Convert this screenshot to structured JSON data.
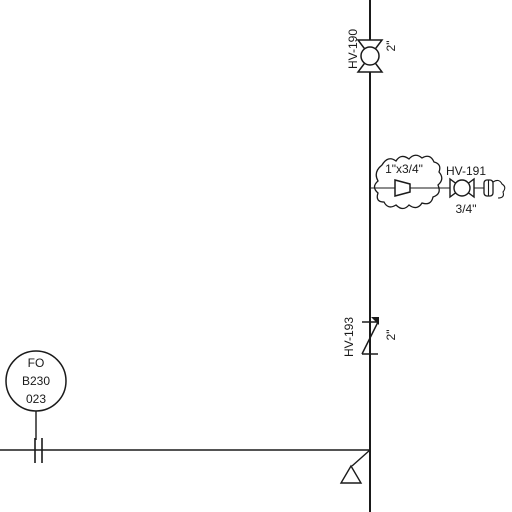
{
  "valves": {
    "hv190": {
      "tag": "HV-190",
      "size": "2\""
    },
    "hv191": {
      "tag": "HV-191",
      "size": "3/4\""
    },
    "hv193": {
      "tag": "HV-193",
      "size": "2\""
    }
  },
  "reducer": {
    "label": "1\"x3/4\""
  },
  "instrument": {
    "line1": "FO",
    "line2": "B230",
    "line3": "023"
  },
  "colors": {
    "line": "#1a1a1a",
    "background": "#ffffff"
  },
  "icons": {
    "gate_valve": "gate-valve-icon",
    "check_valve": "check-valve-icon",
    "reducer": "reducer-icon",
    "revision_cloud": "revision-cloud-icon",
    "orifice": "orifice-flange-icon",
    "support": "pipe-support-icon"
  }
}
